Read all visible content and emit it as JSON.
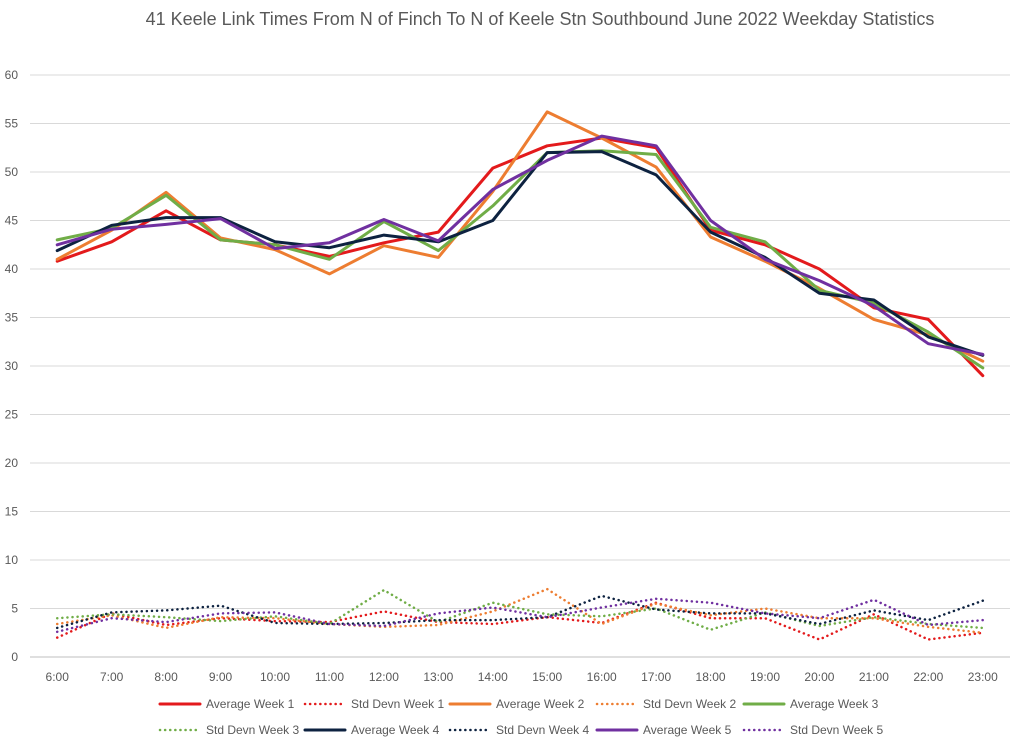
{
  "chart_data": {
    "type": "line",
    "title": "41 Keele Link Times From N of Finch To N of Keele Stn Southbound June 2022 Weekday Statistics",
    "xlabel": "",
    "ylabel": "",
    "ylim": [
      0,
      60
    ],
    "yticks": [
      0,
      5,
      10,
      15,
      20,
      25,
      30,
      35,
      40,
      45,
      50,
      55,
      60
    ],
    "grid": true,
    "legend_position": "bottom",
    "x": [
      "6:00",
      "7:00",
      "8:00",
      "9:00",
      "10:00",
      "11:00",
      "12:00",
      "13:00",
      "14:00",
      "15:00",
      "16:00",
      "17:00",
      "18:00",
      "19:00",
      "20:00",
      "21:00",
      "22:00",
      "23:00"
    ],
    "series": [
      {
        "name": "Average Week 1",
        "style": "solid",
        "color": "#e31a1c",
        "values": [
          40.8,
          42.8,
          46.0,
          43.0,
          42.5,
          41.3,
          42.7,
          43.8,
          50.4,
          52.7,
          53.5,
          52.5,
          44.0,
          42.5,
          40.0,
          36.0,
          34.8,
          29.0
        ]
      },
      {
        "name": "Std Devn Week 1",
        "style": "dotted",
        "color": "#e31a1c",
        "values": [
          2.0,
          4.5,
          3.3,
          4.0,
          3.7,
          3.6,
          4.7,
          3.6,
          3.4,
          4.1,
          3.5,
          5.6,
          4.0,
          4.0,
          1.8,
          4.4,
          1.8,
          2.5
        ]
      },
      {
        "name": "Average Week 2",
        "style": "solid",
        "color": "#ed7d31",
        "values": [
          41.0,
          44.0,
          47.9,
          43.2,
          42.0,
          39.5,
          42.4,
          41.2,
          48.0,
          56.2,
          53.5,
          50.5,
          43.3,
          40.8,
          38.0,
          34.8,
          33.2,
          30.5
        ]
      },
      {
        "name": "Std Devn Week 2",
        "style": "dotted",
        "color": "#ed7d31",
        "values": [
          3.4,
          4.3,
          3.0,
          4.1,
          4.0,
          3.4,
          3.1,
          3.3,
          4.7,
          7.0,
          3.4,
          5.5,
          4.3,
          5.0,
          4.0,
          4.0,
          3.1,
          2.5
        ]
      },
      {
        "name": "Average Week 3",
        "style": "solid",
        "color": "#70ad47",
        "values": [
          43.0,
          44.2,
          47.6,
          43.0,
          42.5,
          41.0,
          44.9,
          41.9,
          46.5,
          52.0,
          52.2,
          51.8,
          44.3,
          42.8,
          37.8,
          36.5,
          33.5,
          29.8
        ]
      },
      {
        "name": "Std Devn Week 3",
        "style": "dotted",
        "color": "#70ad47",
        "values": [
          4.0,
          4.4,
          4.1,
          3.7,
          4.2,
          3.4,
          6.9,
          3.6,
          5.6,
          4.4,
          4.2,
          5.0,
          2.8,
          4.6,
          3.2,
          4.1,
          3.4,
          3.0
        ]
      },
      {
        "name": "Average Week 4",
        "style": "solid",
        "color": "#0d2240",
        "values": [
          41.9,
          44.5,
          45.3,
          45.3,
          42.8,
          42.2,
          43.5,
          42.8,
          45.0,
          52.0,
          52.1,
          49.7,
          43.8,
          41.2,
          37.5,
          36.8,
          33.0,
          31.1
        ]
      },
      {
        "name": "Std Devn Week 4",
        "style": "dotted",
        "color": "#0d2240",
        "values": [
          3.0,
          4.6,
          4.8,
          5.3,
          3.5,
          3.4,
          3.5,
          3.8,
          3.8,
          4.1,
          6.3,
          4.9,
          4.5,
          4.5,
          3.4,
          4.8,
          3.8,
          5.8
        ]
      },
      {
        "name": "Average Week 5",
        "style": "solid",
        "color": "#7030a0",
        "values": [
          42.5,
          44.1,
          44.6,
          45.2,
          42.1,
          42.7,
          45.1,
          42.9,
          48.2,
          51.2,
          53.7,
          52.7,
          45.0,
          41.0,
          38.8,
          36.2,
          32.3,
          31.2
        ]
      },
      {
        "name": "Std Devn Week 5",
        "style": "dotted",
        "color": "#7030a0",
        "values": [
          2.6,
          4.0,
          3.6,
          4.5,
          4.6,
          3.4,
          3.2,
          4.5,
          5.1,
          4.1,
          5.1,
          6.0,
          5.6,
          4.5,
          4.0,
          5.9,
          3.3,
          3.8
        ]
      }
    ]
  }
}
